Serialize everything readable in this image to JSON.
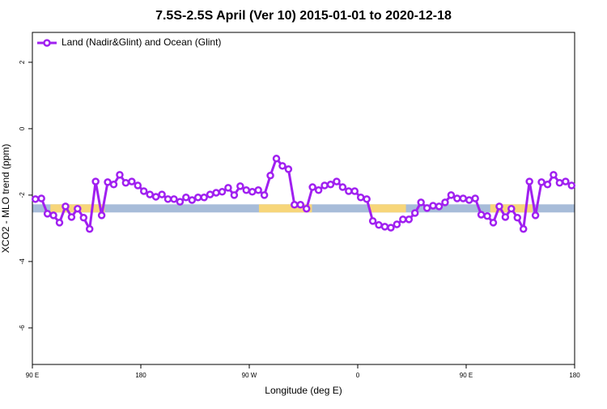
{
  "chart_data": {
    "type": "line",
    "title": "7.5S-2.5S April (Ver 10)   2015-01-01 to 2020-12-18",
    "x_label": "Longitude (deg E)",
    "y_label": "XCO2 - MLO trend (ppm)",
    "xlim": [
      90,
      540
    ],
    "ylim": [
      -7.1,
      2.9
    ],
    "xticks": [
      {
        "value": 90,
        "label": "90 E"
      },
      180,
      {
        "value": 270,
        "label": "90 W"
      },
      {
        "value": 360,
        "label": "0"
      },
      {
        "value": 450,
        "label": "90 E"
      },
      {
        "value": 540,
        "label": "180"
      }
    ],
    "yticks": [
      2,
      0,
      -2,
      -4,
      -6
    ],
    "legend": "top-left",
    "x": [
      92.5,
      97.5,
      102.5,
      107.5,
      112.5,
      117.5,
      122.5,
      127.5,
      132.5,
      137.5,
      142.5,
      147.5,
      152.5,
      157.5,
      162.5,
      167.5,
      172.5,
      177.5,
      182.5,
      187.5,
      192.5,
      197.5,
      202.5,
      207.5,
      212.5,
      217.5,
      222.5,
      227.5,
      232.5,
      237.5,
      242.5,
      247.5,
      252.5,
      257.5,
      262.5,
      267.5,
      272.5,
      277.5,
      282.5,
      287.5,
      292.5,
      297.5,
      302.5,
      307.5,
      312.5,
      317.5,
      322.5,
      327.5,
      332.5,
      337.5,
      342.5,
      347.5,
      352.5,
      357.5,
      362.5,
      367.5,
      372.5,
      377.5,
      382.5,
      387.5,
      392.5,
      397.5,
      402.5,
      407.5,
      412.5,
      417.5,
      422.5,
      427.5,
      432.5,
      437.5,
      442.5,
      447.5,
      452.5,
      457.5,
      462.5,
      467.5,
      472.5,
      477.5,
      482.5,
      487.5,
      492.5,
      497.5,
      502.5,
      507.5,
      512.5,
      517.5,
      522.5,
      527.5,
      532.5,
      537.5
    ],
    "series": [
      {
        "name": "Land (Nadir&Glint) and Ocean (Glint)",
        "color": "#a020f0",
        "values": [
          -2.12,
          -2.1,
          -2.56,
          -2.61,
          -2.83,
          -2.34,
          -2.66,
          -2.41,
          -2.68,
          -3.02,
          -1.59,
          -2.61,
          -1.61,
          -1.68,
          -1.39,
          -1.63,
          -1.59,
          -1.71,
          -1.88,
          -1.98,
          -2.05,
          -1.98,
          -2.12,
          -2.12,
          -2.2,
          -2.07,
          -2.15,
          -2.07,
          -2.07,
          -1.98,
          -1.93,
          -1.9,
          -1.78,
          -2.0,
          -1.73,
          -1.85,
          -1.9,
          -1.85,
          -2.0,
          -1.41,
          -0.9,
          -1.12,
          -1.22,
          -2.29,
          -2.29,
          -2.41,
          -1.76,
          -1.85,
          -1.71,
          -1.68,
          -1.59,
          -1.76,
          -1.88,
          -1.88,
          -2.07,
          -2.12,
          -2.78,
          -2.9,
          -2.95,
          -2.98,
          -2.88,
          -2.73,
          -2.73,
          -2.54,
          -2.22,
          -2.39,
          -2.32,
          -2.34,
          -2.22,
          -2.0,
          -2.1,
          -2.1,
          -2.15,
          -2.1,
          -2.59,
          -2.63,
          -2.83,
          -2.34,
          -2.66,
          -2.41,
          -2.68,
          -3.02,
          -1.59,
          -2.61,
          -1.61,
          -1.68,
          -1.39,
          -1.63,
          -1.59,
          -1.71
        ]
      }
    ],
    "surface_band": {
      "y": -2.4,
      "segments": [
        {
          "from": 90,
          "to": 540,
          "color": "#a7bcd9"
        },
        {
          "from": 105,
          "to": 150,
          "color": "#f7d67a"
        },
        {
          "from": 278,
          "to": 322,
          "color": "#f7d67a"
        },
        {
          "from": 370,
          "to": 400,
          "color": "#f7d67a"
        },
        {
          "from": 470,
          "to": 505,
          "color": "#f7d67a"
        }
      ]
    }
  }
}
